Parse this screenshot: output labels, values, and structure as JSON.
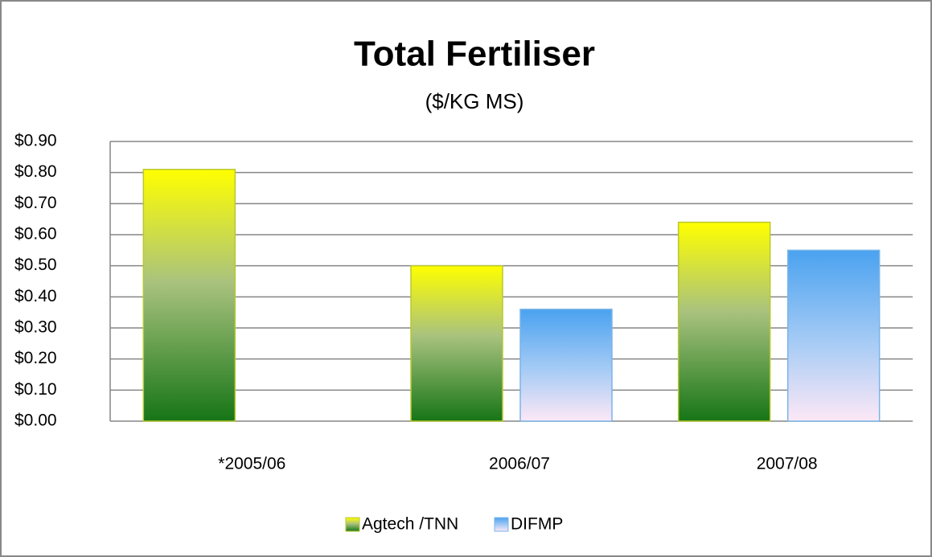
{
  "chart_data": {
    "type": "bar",
    "title": "Total Fertiliser",
    "subtitle": "($/KG MS)",
    "categories": [
      "*2005/06",
      "2006/07",
      "2007/08"
    ],
    "series": [
      {
        "name": "Agtech /TNN",
        "color": "#b8c830",
        "values": [
          0.81,
          0.5,
          0.64
        ]
      },
      {
        "name": "DIFMP",
        "color": "#7ab4e8",
        "values": [
          null,
          0.36,
          0.55
        ]
      }
    ],
    "ylim": [
      0,
      0.9
    ],
    "yticks": [
      {
        "value": 0,
        "label": "$0.00"
      },
      {
        "value": 0.1,
        "label": "$0.10"
      },
      {
        "value": 0.2,
        "label": "$0.20"
      },
      {
        "value": 0.3,
        "label": "$0.30"
      },
      {
        "value": 0.4,
        "label": "$0.40"
      },
      {
        "value": 0.5,
        "label": "$0.50"
      },
      {
        "value": 0.6,
        "label": "$0.60"
      },
      {
        "value": 0.7,
        "label": "$0.70"
      },
      {
        "value": 0.8,
        "label": "$0.80"
      },
      {
        "value": 0.9,
        "label": "$0.90"
      }
    ],
    "grid": true,
    "legend": "bottom"
  }
}
